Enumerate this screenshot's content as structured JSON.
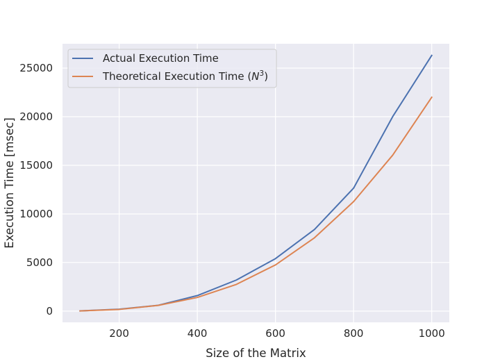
{
  "chart_data": {
    "type": "line",
    "title": "",
    "xlabel": "Size of the Matrix",
    "ylabel": "Execution Time [msec]",
    "xlim": [
      55,
      1045
    ],
    "ylim": [
      -1150,
      27500
    ],
    "xticks": [
      200,
      400,
      600,
      800,
      1000
    ],
    "yticks": [
      0,
      5000,
      10000,
      15000,
      20000,
      25000
    ],
    "x": [
      100,
      200,
      300,
      400,
      500,
      600,
      700,
      800,
      900,
      1000
    ],
    "series": [
      {
        "name": "Actual Execution Time",
        "color": "#4c72b0",
        "values": [
          27,
          200,
          600,
          1600,
          3200,
          5400,
          8400,
          12650,
          20000,
          26300
        ]
      },
      {
        "name": "Theoretical Execution Time ($N^3$)",
        "name_text": "Theoretical Execution Time (",
        "name_math_base": "N",
        "name_math_sup": "3",
        "name_tail": ")",
        "color": "#dd8452",
        "values": [
          22,
          176,
          594,
          1408,
          2750,
          4752,
          7546,
          11264,
          16038,
          22000
        ]
      }
    ],
    "grid": true,
    "legend_position": "top-left",
    "background_color": "#eaeaf2",
    "grid_color": "#ffffff"
  }
}
